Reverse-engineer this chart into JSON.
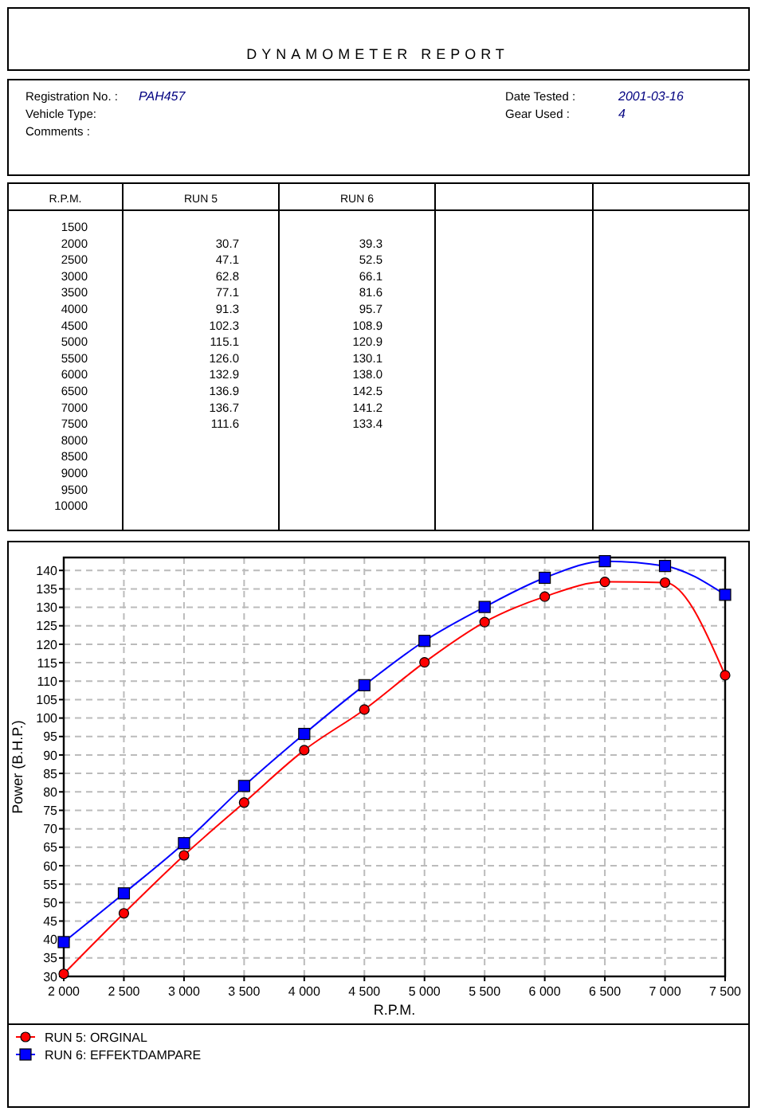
{
  "chart_data": [
    {
      "type": "heatmap",
      "title": "DYNAMOMETER REPORT",
      "ylabel": "R.P.M.",
      "annotations": [
        "Registration No. :",
        "PAH457",
        "Vehicle Type:",
        "Comments :",
        "Date Tested :",
        "2001-03-16",
        "Gear Used :",
        "4"
      ],
      "categories": [
        "RUN 5",
        "RUN 6",
        null,
        null
      ],
      "y_categories": [
        "1500",
        "2000",
        "2500",
        "3000",
        "3500",
        "4000",
        "4500",
        "5000",
        "5500",
        "6000",
        "6500",
        "7000",
        "7500",
        "8000",
        "8500",
        "9000",
        "9500",
        "10000"
      ],
      "cells": [
        [
          null,
          null,
          null,
          null
        ],
        [
          30.7,
          39.3,
          null,
          null
        ],
        [
          47.1,
          52.5,
          null,
          null
        ],
        [
          62.8,
          66.1,
          null,
          null
        ],
        [
          77.1,
          81.6,
          null,
          null
        ],
        [
          91.3,
          95.7,
          null,
          null
        ],
        [
          102.3,
          108.9,
          null,
          null
        ],
        [
          115.1,
          120.9,
          null,
          null
        ],
        [
          126.0,
          130.1,
          null,
          null
        ],
        [
          132.9,
          138.0,
          null,
          null
        ],
        [
          136.9,
          142.5,
          null,
          null
        ],
        [
          136.7,
          141.2,
          null,
          null
        ],
        [
          111.6,
          133.4,
          null,
          null
        ],
        [
          null,
          null,
          null,
          null
        ],
        [
          null,
          null,
          null,
          null
        ],
        [
          null,
          null,
          null,
          null
        ],
        [
          null,
          null,
          null,
          null
        ],
        [
          null,
          null,
          null,
          null
        ]
      ],
      "cell_labels": [
        [
          null,
          null,
          null,
          null
        ],
        [
          "30.7",
          "39.3",
          null,
          null
        ],
        [
          "47.1",
          "52.5",
          null,
          null
        ],
        [
          "62.8",
          "66.1",
          null,
          null
        ],
        [
          "77.1",
          "81.6",
          null,
          null
        ],
        [
          "91.3",
          "95.7",
          null,
          null
        ],
        [
          "102.3",
          "108.9",
          null,
          null
        ],
        [
          "115.1",
          "120.9",
          null,
          null
        ],
        [
          "126.0",
          "130.1",
          null,
          null
        ],
        [
          "132.9",
          "138.0",
          null,
          null
        ],
        [
          "136.9",
          "142.5",
          null,
          null
        ],
        [
          "136.7",
          "141.2",
          null,
          null
        ],
        [
          "111.6",
          "133.4",
          null,
          null
        ],
        [
          null,
          null,
          null,
          null
        ],
        [
          null,
          null,
          null,
          null
        ],
        [
          null,
          null,
          null,
          null
        ],
        [
          null,
          null,
          null,
          null
        ],
        [
          null,
          null,
          null,
          null
        ]
      ],
      "data_labels": true
    },
    {
      "type": "line",
      "xlabel": "R.P.M.",
      "ylabel": "Power (B.H.P.)",
      "x": [
        2000,
        2500,
        3000,
        3500,
        4000,
        4500,
        5000,
        5500,
        6000,
        6500,
        7000,
        7500
      ],
      "series": [
        {
          "name": "RUN 5: ORGINAL",
          "color": "#ff0000",
          "marker": "circle",
          "values": [
            30.7,
            47.1,
            62.8,
            77.1,
            91.3,
            102.3,
            115.1,
            126.0,
            132.9,
            136.9,
            136.7,
            111.6
          ]
        },
        {
          "name": "RUN 6: EFFEKTDAMPARE",
          "color": "#0000ff",
          "marker": "square",
          "values": [
            39.3,
            52.5,
            66.1,
            81.6,
            95.7,
            108.9,
            120.9,
            130.1,
            138.0,
            142.5,
            141.2,
            133.4
          ]
        }
      ],
      "xlim": [
        2000,
        7500
      ],
      "xticks": [
        {
          "value": 2000,
          "label": "2 000"
        },
        {
          "value": 2500,
          "label": "2 500"
        },
        {
          "value": 3000,
          "label": "3 000"
        },
        {
          "value": 3500,
          "label": "3 500"
        },
        {
          "value": 4000,
          "label": "4 000"
        },
        {
          "value": 4500,
          "label": "4 500"
        },
        {
          "value": 5000,
          "label": "5 000"
        },
        {
          "value": 5500,
          "label": "5 500"
        },
        {
          "value": 6000,
          "label": "6 000"
        },
        {
          "value": 6500,
          "label": "6 500"
        },
        {
          "value": 7000,
          "label": "7 000"
        },
        {
          "value": 7500,
          "label": "7 500"
        }
      ],
      "ylim": [
        30,
        143.5
      ],
      "yticks": [
        30,
        35,
        40,
        45,
        50,
        55,
        60,
        65,
        70,
        75,
        80,
        85,
        90,
        95,
        100,
        105,
        110,
        115,
        120,
        125,
        130,
        135,
        140
      ],
      "grid": true,
      "legend": "bottom"
    }
  ]
}
